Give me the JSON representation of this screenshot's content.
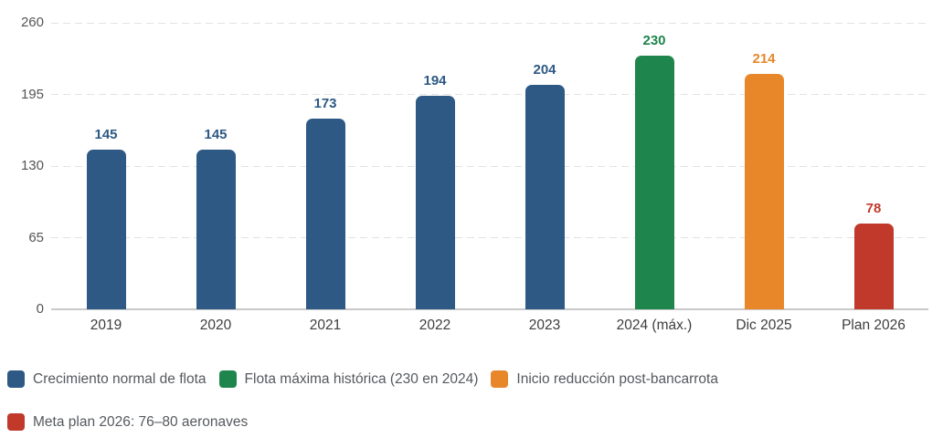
{
  "chart_data": {
    "type": "bar",
    "title": "",
    "categories": [
      "2019",
      "2020",
      "2021",
      "2022",
      "2023",
      "2024 (máx.)",
      "Dic 2025",
      "Plan 2026"
    ],
    "values": [
      145,
      145,
      173,
      194,
      204,
      230,
      214,
      78
    ],
    "bar_colors": [
      "#2e5984",
      "#2e5984",
      "#2e5984",
      "#2e5984",
      "#2e5984",
      "#1e854c",
      "#e8872a",
      "#c0392b"
    ],
    "value_label_colors": [
      "#2e5984",
      "#2e5984",
      "#2e5984",
      "#2e5984",
      "#2e5984",
      "#1e854c",
      "#e8872a",
      "#c0392b"
    ],
    "ylim": [
      0,
      260
    ],
    "yticks": [
      0,
      65,
      130,
      195,
      260
    ],
    "grid": "horizontal-dashed",
    "value_labels_shown": true,
    "legend_position": "bottom-left",
    "legend": [
      {
        "label": "Crecimiento normal de flota",
        "color": "#2e5984",
        "row": 1
      },
      {
        "label": "Flota máxima histórica (230 en 2024)",
        "color": "#1e854c",
        "row": 1
      },
      {
        "label": "Inicio reducción post-bancarrota",
        "color": "#e8872a",
        "row": 1
      },
      {
        "label": "Meta plan 2026: 76–80 aeronaves",
        "color": "#c0392b",
        "row": 2
      }
    ]
  },
  "colors": {
    "background": "#ffffff",
    "gridline": "#e2e2e2",
    "baseline": "#c9c9c9",
    "y_tick_text": "#555555",
    "x_label_text": "#3d3d3d",
    "legend_text": "#55595e"
  }
}
